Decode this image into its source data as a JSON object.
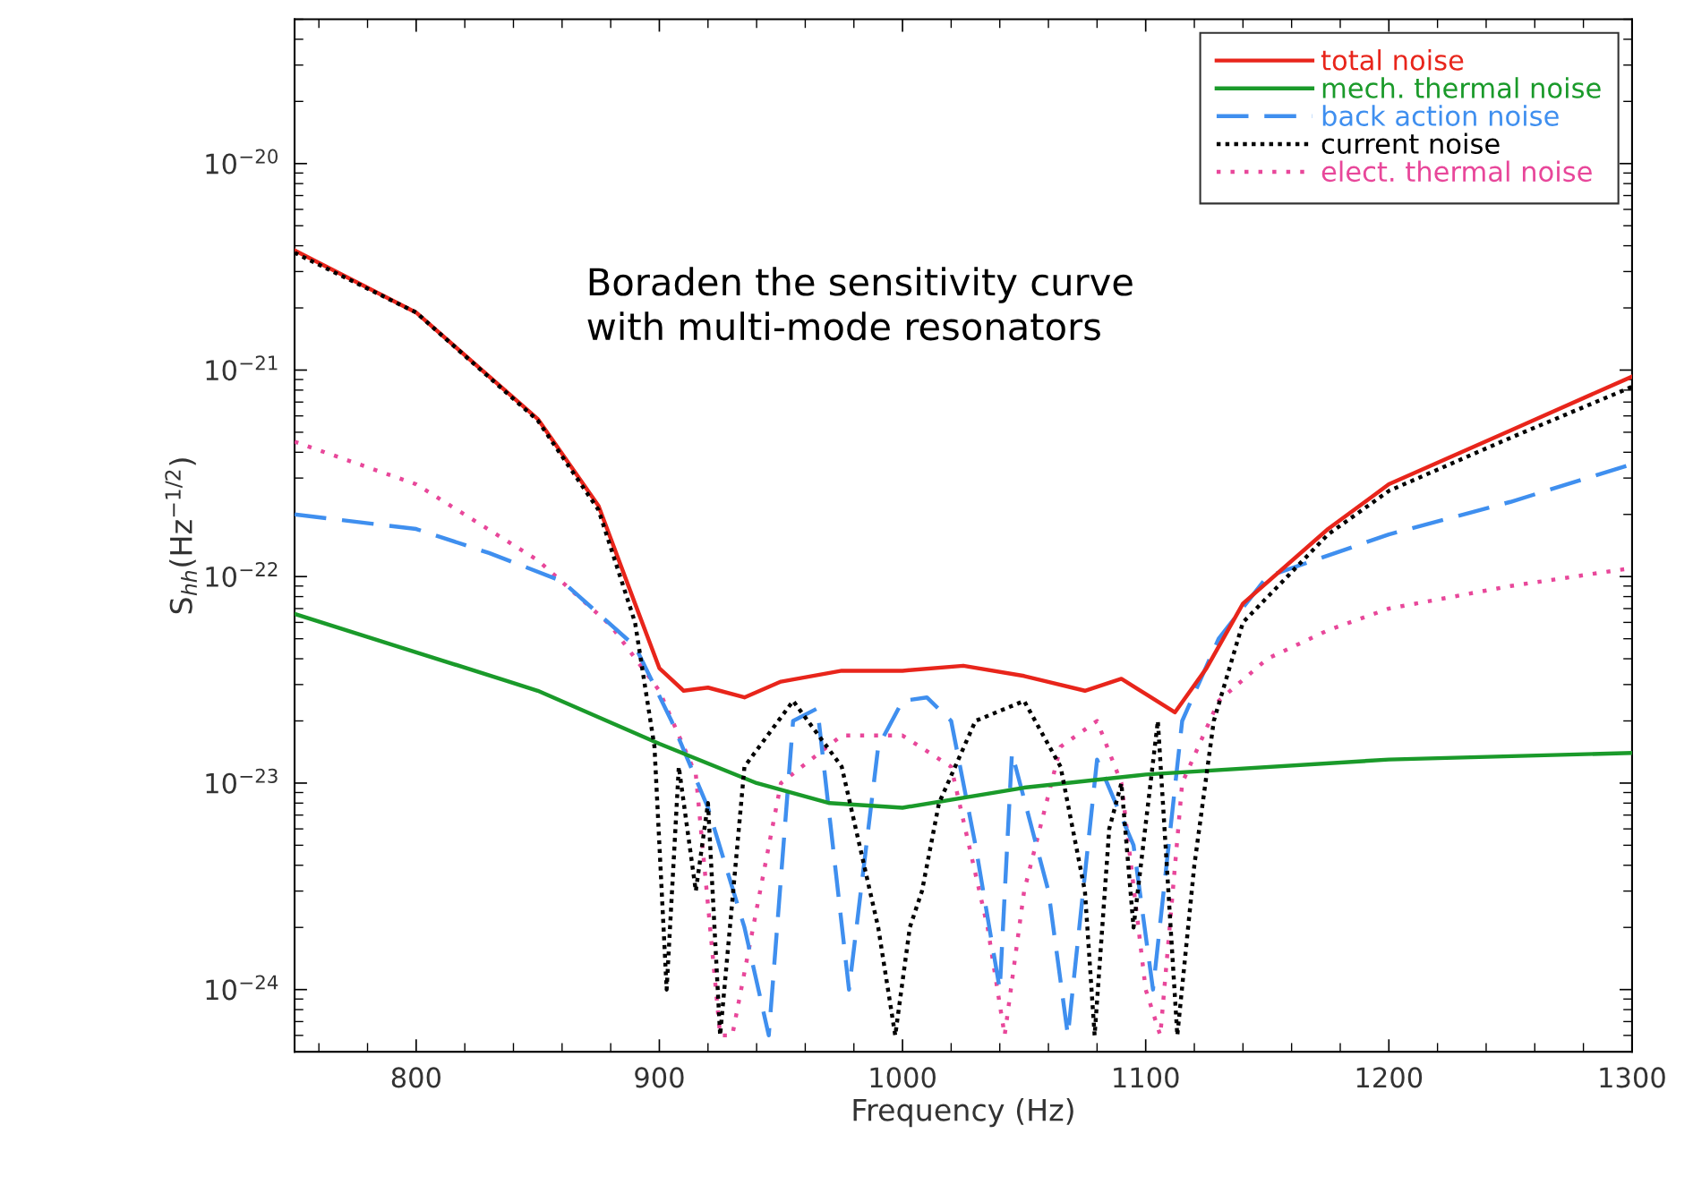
{
  "chart_data": {
    "type": "line",
    "xlabel": "Frequency (Hz)",
    "ylabel": "S$_{hh}$(Hz$^{−1/2}$)",
    "log": "y",
    "xlim": [
      750,
      1300
    ],
    "ylim": [
      5e-25,
      5e-20
    ],
    "xticks": [
      800,
      900,
      1000,
      1100,
      1200,
      1300
    ],
    "yticks": [
      {
        "value": 1e-24,
        "label": "10$^{−24}$"
      },
      {
        "value": 1e-23,
        "label": "10$^{−23}$"
      },
      {
        "value": 1e-22,
        "label": "10$^{−22}$"
      },
      {
        "value": 1e-21,
        "label": "10$^{−21}$"
      },
      {
        "value": 1e-20,
        "label": "10$^{−20}$"
      }
    ],
    "grid": false,
    "legend": "top right",
    "annotations": [
      "Boraden the sensitivity curve\nwith multi-mode resonators"
    ],
    "series": [
      {
        "name": "total noise",
        "color": "#e8251b",
        "line_style": "solid",
        "x": [
          750,
          800,
          850,
          875,
          890,
          900,
          910,
          920,
          935,
          950,
          975,
          1000,
          1025,
          1050,
          1075,
          1090,
          1100,
          1112,
          1125,
          1140,
          1175,
          1200,
          1250,
          1300
        ],
        "values": [
          3.8e-21,
          1.9e-21,
          5.8e-22,
          2.2e-22,
          7.4e-23,
          3.6e-23,
          2.8e-23,
          2.9e-23,
          2.6e-23,
          3.1e-23,
          3.5e-23,
          3.5e-23,
          3.7e-23,
          3.3e-23,
          2.8e-23,
          3.2e-23,
          2.7e-23,
          2.2e-23,
          3.6e-23,
          7.4e-23,
          1.7e-22,
          2.8e-22,
          5.1e-22,
          9.3e-22
        ]
      },
      {
        "name": "mech. thermal noise",
        "color": "#1a9a2a",
        "line_style": "solid",
        "x": [
          750,
          800,
          850,
          900,
          940,
          970,
          1000,
          1050,
          1100,
          1200,
          1300
        ],
        "values": [
          6.6e-23,
          4.3e-23,
          2.8e-23,
          1.55e-23,
          1e-23,
          8e-24,
          7.6e-24,
          9.5e-24,
          1.1e-23,
          1.3e-23,
          1.4e-23
        ]
      },
      {
        "name": "back action noise",
        "color": "#3f8fef",
        "line_style": "dashed",
        "x": [
          750,
          800,
          830,
          860,
          890,
          905,
          920,
          935,
          945,
          955,
          965,
          978,
          990,
          1000,
          1010,
          1020,
          1030,
          1040,
          1045,
          1060,
          1068,
          1080,
          1095,
          1103,
          1115,
          1130,
          1150,
          1200,
          1250,
          1300
        ],
        "values": [
          2e-22,
          1.7e-22,
          1.3e-22,
          9.5e-23,
          4.6e-23,
          2e-23,
          7.6e-24,
          2e-24,
          6e-25,
          2e-23,
          2.3e-23,
          1e-24,
          1.5e-23,
          2.5e-23,
          2.6e-23,
          2e-23,
          5e-24,
          1e-24,
          1.4e-23,
          3e-24,
          6e-25,
          1.3e-23,
          5e-24,
          1e-24,
          2e-23,
          5e-23,
          1e-22,
          1.6e-22,
          2.3e-22,
          3.5e-22
        ]
      },
      {
        "name": "current noise",
        "color": "#000000",
        "line_style": "dotted",
        "x": [
          750,
          800,
          850,
          875,
          890,
          898,
          903,
          908,
          915,
          920,
          925,
          935,
          955,
          975,
          990,
          997,
          1003,
          1008,
          1015,
          1030,
          1050,
          1065,
          1075,
          1079,
          1085,
          1090,
          1095,
          1105,
          1113,
          1120,
          1128,
          1140,
          1175,
          1200,
          1250,
          1300
        ],
        "values": [
          3.7e-21,
          1.9e-21,
          5.7e-22,
          2.1e-22,
          6e-23,
          1.5e-23,
          1e-24,
          1.2e-23,
          3e-24,
          8e-24,
          6e-25,
          1.2e-23,
          2.5e-23,
          1.2e-23,
          2e-24,
          6e-25,
          2e-24,
          3e-24,
          8e-24,
          2e-23,
          2.5e-23,
          1.2e-23,
          3e-24,
          6e-25,
          6e-24,
          1e-23,
          2e-24,
          2e-23,
          6e-25,
          4e-24,
          2e-23,
          6e-23,
          1.6e-22,
          2.6e-22,
          4.7e-22,
          8.3e-22
        ]
      },
      {
        "name": "elect. thermal noise",
        "color": "#e8479a",
        "line_style": "dotted",
        "x": [
          750,
          800,
          850,
          880,
          900,
          915,
          925,
          930,
          950,
          975,
          1000,
          1020,
          1035,
          1042,
          1050,
          1065,
          1080,
          1090,
          1100,
          1106,
          1115,
          1130,
          1150,
          1175,
          1200,
          1250,
          1300
        ],
        "values": [
          4.5e-22,
          2.8e-22,
          1.2e-22,
          5.8e-23,
          2.8e-23,
          1.1e-23,
          6e-25,
          6e-25,
          1e-23,
          1.7e-23,
          1.7e-23,
          1.2e-23,
          2e-24,
          6e-25,
          3e-24,
          1.5e-23,
          2e-23,
          1e-23,
          1e-24,
          6e-25,
          1e-23,
          2.5e-23,
          4e-23,
          5.5e-23,
          7e-23,
          9e-23,
          1.1e-22
        ]
      }
    ]
  }
}
